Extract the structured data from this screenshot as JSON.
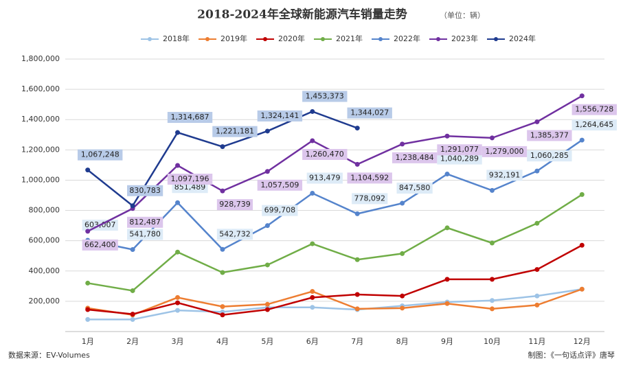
{
  "chart_data": {
    "type": "line",
    "title": "2018-2024年全球新能源汽车销量走势",
    "subtitle": "（单位：辆）",
    "source": "数据来源：EV-Volumes",
    "credit": "制图：《一句话点评》唐琴",
    "categories": [
      "1月",
      "2月",
      "3月",
      "4月",
      "5月",
      "6月",
      "7月",
      "8月",
      "9月",
      "10月",
      "11月",
      "12月"
    ],
    "ylim": [
      0,
      1800000
    ],
    "yticks": [
      {
        "value": 200000,
        "label": "200,000"
      },
      {
        "value": 400000,
        "label": "400,000"
      },
      {
        "value": 600000,
        "label": "600,000"
      },
      {
        "value": 800000,
        "label": "800,000"
      },
      {
        "value": 1000000,
        "label": "1,000,000"
      },
      {
        "value": 1200000,
        "label": "1,200,000"
      },
      {
        "value": 1400000,
        "label": "1,400,000"
      },
      {
        "value": 1600000,
        "label": "1,600,000"
      },
      {
        "value": 1800000,
        "label": "1,800,000"
      }
    ],
    "grid": true,
    "legend": "top",
    "series": [
      {
        "name": "2018年",
        "color": "#9dc3e6",
        "values": [
          80000,
          80000,
          140000,
          130000,
          160000,
          160000,
          145000,
          170000,
          195000,
          205000,
          235000,
          280000
        ]
      },
      {
        "name": "2019年",
        "color": "#ed7d31",
        "values": [
          155000,
          110000,
          225000,
          165000,
          180000,
          265000,
          150000,
          155000,
          185000,
          150000,
          175000,
          280000
        ]
      },
      {
        "name": "2020年",
        "color": "#c00000",
        "values": [
          145000,
          115000,
          190000,
          110000,
          145000,
          225000,
          245000,
          235000,
          345000,
          345000,
          410000,
          570000
        ]
      },
      {
        "name": "2021年",
        "color": "#70ad47",
        "values": [
          320000,
          270000,
          525000,
          390000,
          440000,
          580000,
          475000,
          515000,
          685000,
          585000,
          715000,
          905000
        ]
      },
      {
        "name": "2022年",
        "color": "#5584cc",
        "label_bg": "#ddebf7",
        "values": [
          603007,
          541780,
          851489,
          542732,
          699708,
          913479,
          778092,
          847580,
          1040289,
          932191,
          1060285,
          1264645
        ],
        "value_labels": [
          "603,007",
          "541,780",
          "851,489",
          "542,732",
          "699,708",
          "913,479",
          "778,092",
          "847,580",
          "1,040,289",
          "932,191",
          "1,060,285",
          "1,264,645"
        ]
      },
      {
        "name": "2023年",
        "color": "#7030a0",
        "label_bg": "#dcc6ec",
        "values": [
          662400,
          812487,
          1097196,
          928739,
          1057509,
          1260470,
          1104592,
          1238484,
          1291077,
          1279000,
          1385377,
          1556728
        ],
        "value_labels": [
          "662,400",
          "812,487",
          "1,097,196",
          "928,739",
          "1,057,509",
          "1,260,470",
          "1,104,592",
          "1,238,484",
          "1,291,077",
          "1,279,000",
          "1,385,377",
          "1,556,728"
        ]
      },
      {
        "name": "2024年",
        "color": "#1f3b8f",
        "label_bg": "#b8cbe8",
        "values": [
          1067248,
          830783,
          1314687,
          1221181,
          1324141,
          1453373,
          1344027,
          null,
          null,
          null,
          null,
          null
        ],
        "value_labels": [
          "1,067,248",
          "830,783",
          "1,314,687",
          "1,221,181",
          "1,324,141",
          "1,453,373",
          "1,344,027",
          null,
          null,
          null,
          null,
          null
        ]
      }
    ]
  }
}
